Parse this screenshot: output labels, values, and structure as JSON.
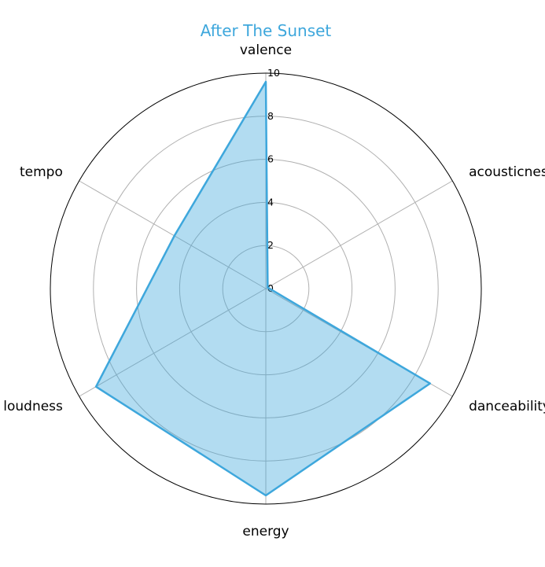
{
  "chart_data": {
    "type": "radar",
    "title": "After The Sunset",
    "axes": [
      "valence",
      "acousticness",
      "danceability",
      "energy",
      "loudness",
      "tempo"
    ],
    "series": [
      {
        "values": [
          9.6,
          0.1,
          8.8,
          9.6,
          9.1,
          4.9
        ]
      }
    ],
    "rlim": [
      0,
      10
    ],
    "r_ticks": [
      "0",
      "2",
      "4",
      "6",
      "8",
      "10"
    ],
    "grid": true,
    "colors": {
      "line": "#3ea7dc",
      "fill": "#3ea7dc",
      "grid": "#b0b0b0",
      "spine": "#000000"
    }
  }
}
